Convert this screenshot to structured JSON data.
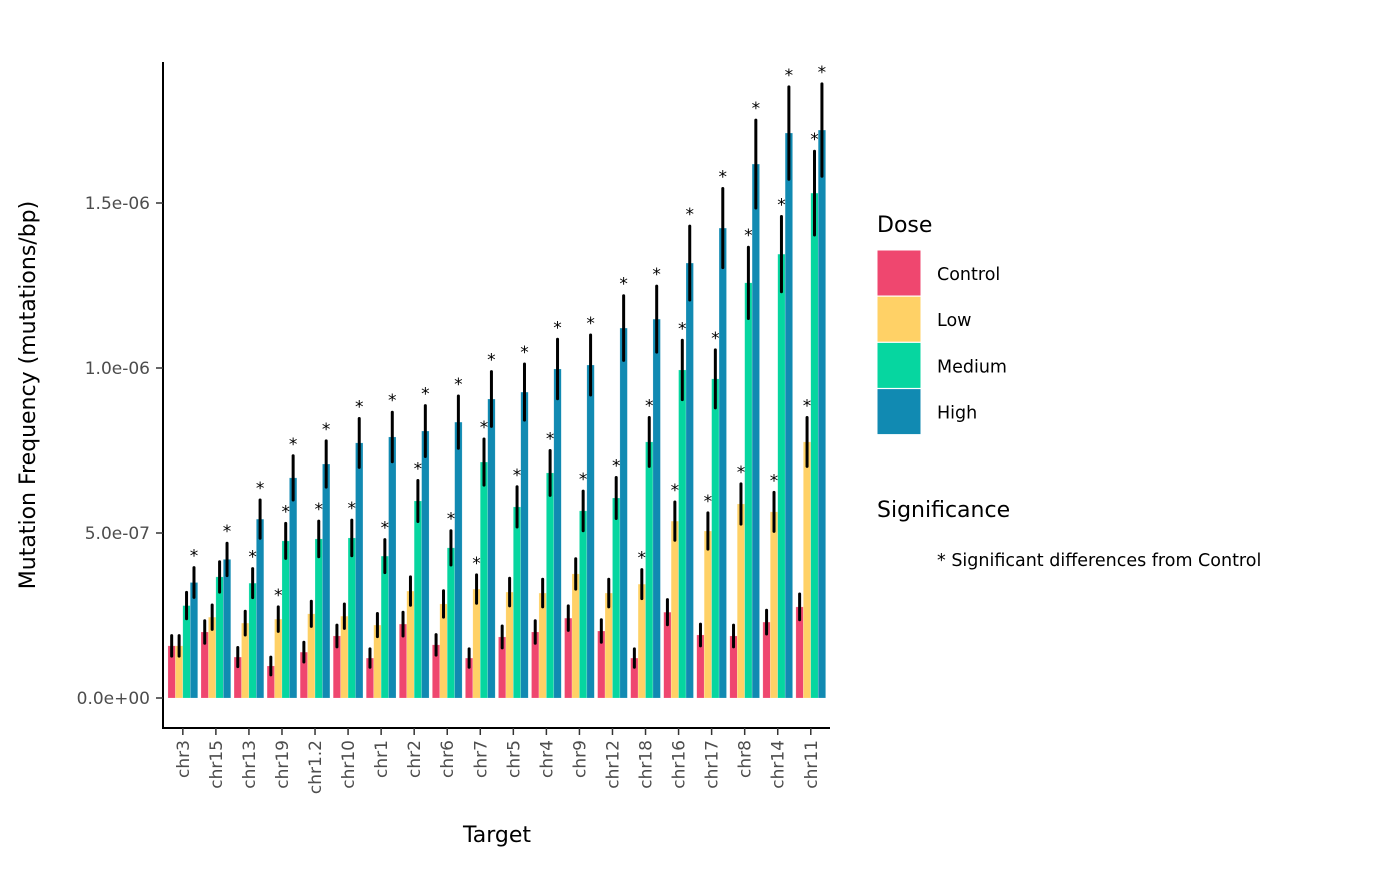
{
  "chart_data": {
    "type": "bar",
    "title": "",
    "xlabel": "Target",
    "ylabel": "Mutation Frequency (mutations/bp)",
    "ylim": [
      0,
      1.9e-06
    ],
    "yticks": [
      0,
      5e-07,
      1e-06,
      1.5e-06
    ],
    "ytick_labels": [
      "0.0e+00",
      "5.0e-07",
      "1.0e-06",
      "1.5e-06"
    ],
    "grid": false,
    "categories": [
      "chr3",
      "chr15",
      "chr13",
      "chr19",
      "chr1.2",
      "chr10",
      "chr1",
      "chr2",
      "chr6",
      "chr7",
      "chr5",
      "chr4",
      "chr9",
      "chr12",
      "chr18",
      "chr16",
      "chr17",
      "chr8",
      "chr14",
      "chr11"
    ],
    "series": [
      {
        "name": "Control",
        "color": "#EF476F",
        "values": [
          1.58e-07,
          2e-07,
          1.24e-07,
          9.7e-08,
          1.39e-07,
          1.88e-07,
          1.21e-07,
          2.24e-07,
          1.61e-07,
          1.21e-07,
          1.85e-07,
          2e-07,
          2.42e-07,
          2.03e-07,
          1.21e-07,
          2.6e-07,
          1.91e-07,
          1.88e-07,
          2.3e-07,
          2.76e-07
        ],
        "error": [
          3.1e-08,
          3.4e-08,
          2.9e-08,
          2.7e-08,
          3e-08,
          3.3e-08,
          2.8e-08,
          3.6e-08,
          3.1e-08,
          2.8e-08,
          3.3e-08,
          3.4e-08,
          3.7e-08,
          3.4e-08,
          2.8e-08,
          3.8e-08,
          3.3e-08,
          3.3e-08,
          3.6e-08,
          3.9e-08
        ],
        "significant": [
          false,
          false,
          false,
          false,
          false,
          false,
          false,
          false,
          false,
          false,
          false,
          false,
          false,
          false,
          false,
          false,
          false,
          false,
          false,
          false
        ]
      },
      {
        "name": "Low",
        "color": "#FFD166",
        "values": [
          1.58e-07,
          2.45e-07,
          2.27e-07,
          2.39e-07,
          2.55e-07,
          2.48e-07,
          2.21e-07,
          3.24e-07,
          2.85e-07,
          3.3e-07,
          3.21e-07,
          3.18e-07,
          3.76e-07,
          3.18e-07,
          3.45e-07,
          5.36e-07,
          5.06e-07,
          5.88e-07,
          5.64e-07,
          7.76e-07
        ],
        "error": [
          3.1e-08,
          3.7e-08,
          3.6e-08,
          3.7e-08,
          3.8e-08,
          3.7e-08,
          3.5e-08,
          4.3e-08,
          4e-08,
          4.3e-08,
          4.2e-08,
          4.2e-08,
          4.6e-08,
          4.2e-08,
          4.4e-08,
          5.8e-08,
          5.5e-08,
          6.1e-08,
          5.9e-08,
          7.4e-08
        ],
        "significant": [
          false,
          false,
          false,
          true,
          false,
          false,
          false,
          false,
          false,
          true,
          false,
          false,
          false,
          false,
          true,
          true,
          true,
          true,
          true,
          true
        ]
      },
      {
        "name": "Medium",
        "color": "#06D6A0",
        "values": [
          2.8e-07,
          3.67e-07,
          3.48e-07,
          4.76e-07,
          4.82e-07,
          4.85e-07,
          4.3e-07,
          5.97e-07,
          4.55e-07,
          7.15e-07,
          5.79e-07,
          6.82e-07,
          5.67e-07,
          6.06e-07,
          7.76e-07,
          9.94e-07,
          9.67e-07,
          1.258e-06,
          1.345e-06,
          1.53e-06
        ],
        "error": [
          4e-08,
          4.6e-08,
          4.4e-08,
          5.3e-08,
          5.4e-08,
          5.4e-08,
          5e-08,
          6.2e-08,
          5.2e-08,
          7e-08,
          6.1e-08,
          6.8e-08,
          6e-08,
          6.2e-08,
          7.4e-08,
          9e-08,
          8.8e-08,
          1.08e-07,
          1.14e-07,
          1.27e-07
        ],
        "significant": [
          false,
          false,
          true,
          true,
          true,
          true,
          true,
          true,
          true,
          true,
          true,
          true,
          true,
          true,
          true,
          true,
          true,
          true,
          true,
          true
        ]
      },
      {
        "name": "High",
        "color": "#118AB2",
        "values": [
          3.5e-07,
          4.2e-07,
          5.42e-07,
          6.67e-07,
          7.09e-07,
          7.73e-07,
          7.91e-07,
          8.09e-07,
          8.36e-07,
          9.06e-07,
          9.27e-07,
          9.97e-07,
          1.009e-06,
          1.121e-06,
          1.148e-06,
          1.318e-06,
          1.424e-06,
          1.618e-06,
          1.712e-06,
          1.721e-06
        ],
        "error": [
          4.5e-08,
          4.9e-08,
          5.8e-08,
          6.7e-08,
          7e-08,
          7.4e-08,
          7.5e-08,
          7.7e-08,
          7.9e-08,
          8.3e-08,
          8.5e-08,
          9e-08,
          9.1e-08,
          9.8e-08,
          1e-07,
          1.12e-07,
          1.2e-07,
          1.33e-07,
          1.4e-07,
          1.4e-07
        ],
        "significant": [
          true,
          true,
          true,
          true,
          true,
          true,
          true,
          true,
          true,
          true,
          true,
          true,
          true,
          true,
          true,
          true,
          true,
          true,
          true,
          true
        ]
      }
    ],
    "significance_marker": "*",
    "legend": {
      "placement": "right",
      "title": "Dose",
      "significance_title": "Significance",
      "significance_text": "* Significant differences from Control"
    }
  }
}
